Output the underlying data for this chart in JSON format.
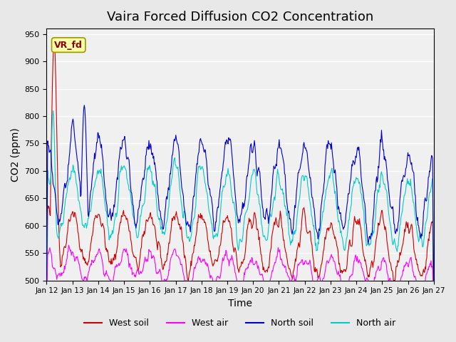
{
  "title": "Vaira Forced Diffusion CO2 Concentration",
  "xlabel": "Time",
  "ylabel": "CO2 (ppm)",
  "ylim": [
    500,
    960
  ],
  "yticks": [
    500,
    550,
    600,
    650,
    700,
    750,
    800,
    850,
    900,
    950
  ],
  "xtick_labels": [
    "Jan 12",
    "Jan 13",
    "Jan 14",
    "Jan 15",
    "Jan 16",
    "Jan 17",
    "Jan 18",
    "Jan 19",
    "Jan 20",
    "Jan 21",
    "Jan 22",
    "Jan 23",
    "Jan 24",
    "Jan 25",
    "Jan 26",
    "Jan 27"
  ],
  "n_days": 15,
  "points_per_day": 48,
  "colors": {
    "west_soil": "#cc0000",
    "west_air": "#ff00ff",
    "north_soil": "#0000cc",
    "north_air": "#00cccc"
  },
  "annotation_text": "VR_fd",
  "bg_color": "#e8e8e8",
  "plot_bg": "#f0f0f0",
  "title_fontsize": 13,
  "label_fontsize": 10
}
